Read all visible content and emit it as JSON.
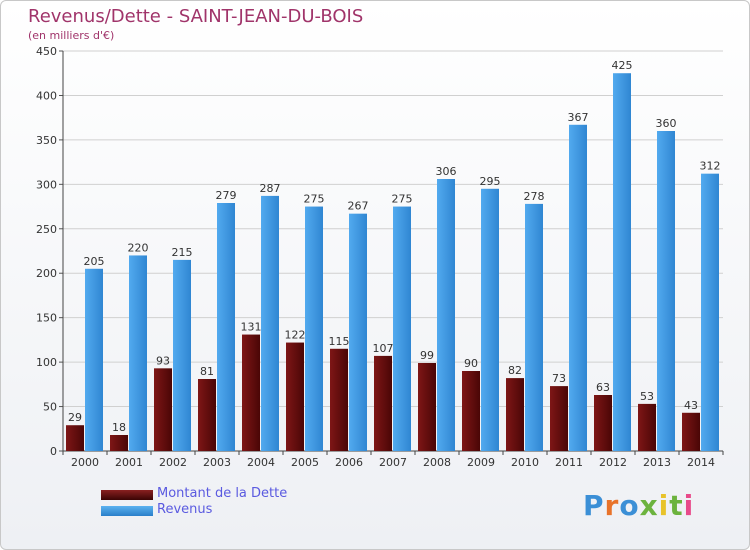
{
  "title": "Revenus/Dette - SAINT-JEAN-DU-BOIS",
  "subtitle": "(en milliers d'€)",
  "colors": {
    "dette": "#6b0f0f",
    "revenus": "#3c99e6",
    "title": "#a0346a",
    "legend_text": "#5a5ae0"
  },
  "legend": [
    {
      "label": "Montant de la Dette",
      "color": "#6b0f0f"
    },
    {
      "label": "Revenus",
      "color": "#3c99e6"
    }
  ],
  "logo": {
    "text": "Proxiti"
  },
  "chart_data": {
    "type": "bar",
    "title": "Revenus/Dette - SAINT-JEAN-DU-BOIS",
    "subtitle": "(en milliers d'€)",
    "xlabel": "",
    "ylabel": "",
    "ylim": [
      0,
      450
    ],
    "yticks": [
      0,
      50,
      100,
      150,
      200,
      250,
      300,
      350,
      400,
      450
    ],
    "grid": true,
    "legend_position": "bottom-left",
    "categories": [
      "2000",
      "2001",
      "2002",
      "2003",
      "2004",
      "2005",
      "2006",
      "2007",
      "2008",
      "2009",
      "2010",
      "2011",
      "2012",
      "2013",
      "2014"
    ],
    "series": [
      {
        "name": "Montant de la Dette",
        "color": "#6b0f0f",
        "values": [
          29,
          18,
          93,
          81,
          131,
          122,
          115,
          107,
          99,
          90,
          82,
          73,
          63,
          53,
          43
        ]
      },
      {
        "name": "Revenus",
        "color": "#3c99e6",
        "values": [
          205,
          220,
          215,
          279,
          287,
          275,
          267,
          275,
          306,
          295,
          278,
          367,
          425,
          360,
          312
        ]
      }
    ]
  }
}
